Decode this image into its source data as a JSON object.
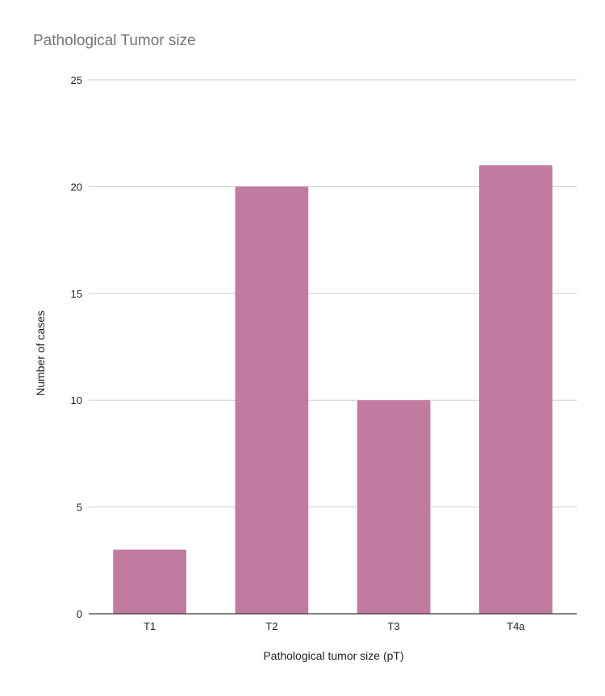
{
  "chart_data": {
    "type": "bar",
    "title": "Pathological Tumor size",
    "xlabel": "Pathological tumor size (pT)",
    "ylabel": "Number of cases",
    "categories": [
      "T1",
      "T2",
      "T3",
      "T4a"
    ],
    "values": [
      3,
      20,
      10,
      21
    ],
    "ylim": [
      0,
      25
    ],
    "yticks": [
      "0",
      "5",
      "10",
      "15",
      "20",
      "25"
    ],
    "grid": true,
    "legend": "none",
    "colors": {
      "bar": "#c27ba0",
      "grid": "#cccccc",
      "axis": "#333333",
      "title": "#757575",
      "text": "#222222"
    }
  }
}
